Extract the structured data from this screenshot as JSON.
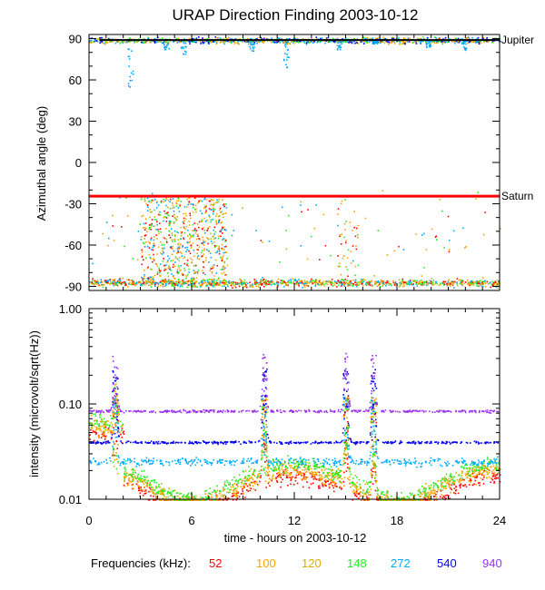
{
  "chart_data": [
    {
      "type": "scatter",
      "title": "URAP Direction Finding  2003-10-12",
      "xlabel": "time - hours on 2003-10-12",
      "ylabel": "Azimuthal angle (deg)",
      "xlim": [
        0,
        24
      ],
      "ylim": [
        -93,
        93
      ],
      "xticks": [
        "0",
        "6",
        "12",
        "18",
        "24"
      ],
      "yticks": [
        "90",
        "60",
        "30",
        "0",
        "-30",
        "-60",
        "-90"
      ],
      "reference_lines": [
        {
          "name": "Jupiter",
          "value": 89,
          "color": "#000000"
        },
        {
          "name": "Saturn",
          "value": -24.5,
          "color": "#ff0000"
        }
      ],
      "description_of_points": "Dense clusters near +89 deg (Jupiter) and near -90 deg; scattered points between 3 and 8 h and near 15 h"
    },
    {
      "type": "line",
      "xlabel": "time - hours on 2003-10-12",
      "ylabel": "intensity (microvolt/sqrt(Hz))",
      "yscale": "log",
      "xlim": [
        0,
        24
      ],
      "ylim": [
        0.01,
        1.0
      ],
      "xticks": [
        "0",
        "6",
        "12",
        "18",
        "24"
      ],
      "yticks": [
        "1.00",
        "0.10",
        "0.01"
      ],
      "series": [
        {
          "name": "52",
          "baseline": 0.0125,
          "color": "#ff0000"
        },
        {
          "name": "100",
          "baseline": 0.014,
          "color": "#ffa500"
        },
        {
          "name": "120",
          "baseline": 0.016,
          "color": "#ddaa00"
        },
        {
          "name": "148",
          "baseline": 0.017,
          "color": "#22ee22"
        },
        {
          "name": "272",
          "baseline": 0.025,
          "color": "#00aaff"
        },
        {
          "name": "540",
          "baseline": 0.04,
          "color": "#0000ee"
        },
        {
          "name": "940",
          "baseline": 0.085,
          "color": "#9933ee"
        }
      ],
      "bursts_hours": [
        1.5,
        10.2,
        15.0,
        16.6
      ]
    }
  ],
  "legend": {
    "label": "Frequencies (kHz):",
    "items": [
      {
        "text": "52",
        "color": "#ff0000"
      },
      {
        "text": "100",
        "color": "#ffa500"
      },
      {
        "text": "120",
        "color": "#ddaa00"
      },
      {
        "text": "148",
        "color": "#22ee22"
      },
      {
        "text": "272",
        "color": "#00aaff"
      },
      {
        "text": "540",
        "color": "#0000ee"
      },
      {
        "text": "940",
        "color": "#9933ee"
      }
    ]
  }
}
